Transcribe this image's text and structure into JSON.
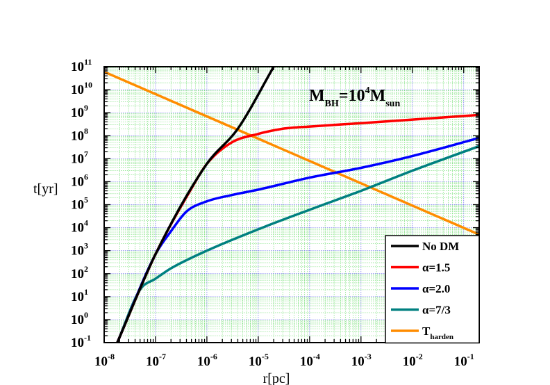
{
  "chart_data": {
    "type": "line",
    "xscale": "log",
    "yscale": "log",
    "xlabel": "r[pc]",
    "ylabel": "t[yr]",
    "xlim": [
      1e-08,
      0.2
    ],
    "ylim": [
      0.1,
      100000000000.0
    ],
    "grid": true,
    "annotation": {
      "main": "M",
      "sub1": "BH",
      "eq": "=10",
      "sup": "4",
      "main2": "M",
      "sub2": "sun"
    },
    "x_ticks": [
      {
        "base": "10",
        "exp": "-8",
        "value": 1e-08
      },
      {
        "base": "10",
        "exp": "-7",
        "value": 1e-07
      },
      {
        "base": "10",
        "exp": "-6",
        "value": 1e-06
      },
      {
        "base": "10",
        "exp": "-5",
        "value": 1e-05
      },
      {
        "base": "10",
        "exp": "-4",
        "value": 0.0001
      },
      {
        "base": "10",
        "exp": "-3",
        "value": 0.001
      },
      {
        "base": "10",
        "exp": "-2",
        "value": 0.01
      },
      {
        "base": "10",
        "exp": "-1",
        "value": 0.1
      }
    ],
    "y_ticks": [
      {
        "base": "10",
        "exp": "-1",
        "value": 0.1
      },
      {
        "base": "10",
        "exp": "0",
        "value": 1.0
      },
      {
        "base": "10",
        "exp": "1",
        "value": 10.0
      },
      {
        "base": "10",
        "exp": "2",
        "value": 100.0
      },
      {
        "base": "10",
        "exp": "3",
        "value": 1000.0
      },
      {
        "base": "10",
        "exp": "4",
        "value": 10000.0
      },
      {
        "base": "10",
        "exp": "5",
        "value": 100000.0
      },
      {
        "base": "10",
        "exp": "6",
        "value": 1000000.0
      },
      {
        "base": "10",
        "exp": "7",
        "value": 10000000.0
      },
      {
        "base": "10",
        "exp": "8",
        "value": 100000000.0
      },
      {
        "base": "10",
        "exp": "9",
        "value": 1000000000.0
      },
      {
        "base": "10",
        "exp": "10",
        "value": 10000000000.0
      },
      {
        "base": "10",
        "exp": "11",
        "value": 100000000000.0
      }
    ],
    "legend_position": "bottom-right",
    "series": [
      {
        "name": "No DM",
        "color": "#000000",
        "x": [
          1.8e-08,
          1e-07,
          1e-06,
          4e-06,
          2e-05
        ],
        "y": [
          0.1,
          700,
          6000000.0,
          200000000.0,
          100000000000.0
        ]
      },
      {
        "name": "α=1.5",
        "color": "#ff0000",
        "x": [
          1.8e-08,
          1e-07,
          5e-07,
          1e-06,
          3e-06,
          1e-05,
          3e-05,
          0.0001,
          0.001,
          0.01,
          0.2
        ],
        "y": [
          0.1,
          700,
          500000.0,
          6000000.0,
          50000000.0,
          120000000.0,
          200000000.0,
          250000000.0,
          350000000.0,
          500000000.0,
          800000000.0
        ]
      },
      {
        "name": "α=2.0",
        "color": "#0000ff",
        "x": [
          1.8e-08,
          1e-07,
          2e-07,
          4e-07,
          1e-06,
          3e-06,
          1e-05,
          0.0001,
          0.001,
          0.01,
          0.2
        ],
        "y": [
          0.1,
          700,
          7000,
          50000.0,
          140000.0,
          260000.0,
          450000.0,
          1500000.0,
          4000000.0,
          13000000.0,
          80000000.0
        ]
      },
      {
        "name": "α=7/3",
        "color": "#008080",
        "x": [
          1.8e-08,
          5e-08,
          1e-07,
          2e-07,
          1e-06,
          1e-05,
          0.0001,
          0.001,
          0.01,
          0.2
        ],
        "y": [
          0.1,
          20,
          60,
          170,
          1000,
          8500,
          60000.0,
          400000.0,
          3000000.0,
          35000000.0
        ]
      },
      {
        "name": "T",
        "name_sub": "harden",
        "color": "#ff8c00",
        "x": [
          1e-08,
          0.2
        ],
        "y": [
          60000000000.0,
          5000
        ]
      }
    ]
  }
}
